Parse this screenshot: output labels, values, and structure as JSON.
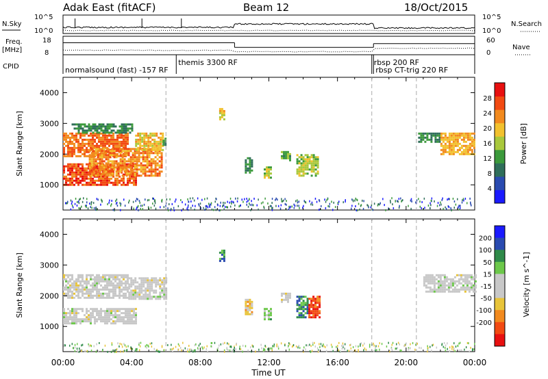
{
  "header": {
    "station": "Adak East (fitACF)",
    "beam": "Beam 12",
    "date": "18/Oct/2015"
  },
  "top_panels": {
    "nsky_label": "N.Sky",
    "nsky_ticks": [
      "10^5",
      "10^0"
    ],
    "nsearch_label": "N.Search",
    "nsearch_ticks": [
      "10^5",
      "10^0"
    ],
    "freq_label": "Freq.",
    "freq_unit": "[MHz]",
    "freq_ticks": [
      "18",
      "8"
    ],
    "nave_label": "Nave",
    "nave_ticks": [
      "60",
      "0"
    ],
    "cpid_label": "CPID",
    "cpid_segments": [
      {
        "label": "normalsound (fast) -157 RF",
        "start_h": 0,
        "end_h": 6.6
      },
      {
        "label": "themis 3300 RF",
        "start_h": 6.6,
        "end_h": 18.0
      },
      {
        "label": "rbsp 200 RF",
        "start_h": 18.0,
        "end_h": 18.1
      },
      {
        "label": "rbsp CT-trig 220 RF",
        "start_h": 18.1,
        "end_h": 24
      }
    ],
    "freq_steps": [
      {
        "start_h": 0,
        "end_h": 10.0,
        "mhz": 14.5
      },
      {
        "start_h": 10.0,
        "end_h": 18.1,
        "mhz": 12.0
      },
      {
        "start_h": 18.1,
        "end_h": 24,
        "mhz": 14.0
      }
    ]
  },
  "x_axis": {
    "label": "Time UT",
    "ticks": [
      "00:00",
      "04:00",
      "08:00",
      "12:00",
      "16:00",
      "20:00",
      "00:00"
    ],
    "range_h": [
      0,
      24
    ]
  },
  "colors": {
    "power": [
      "#1a1aff",
      "#2a4bb0",
      "#2f6e5a",
      "#3c9a3c",
      "#a9c83c",
      "#f2c12e",
      "#f28a1e",
      "#f24a12",
      "#e81010"
    ],
    "velocity": [
      "#e81010",
      "#f24a12",
      "#f28a1e",
      "#e8c43a",
      "#c8c8c8",
      "#c8c8c8",
      "#6cc84a",
      "#2f8a4a",
      "#2a4bb0",
      "#1a1aff"
    ]
  },
  "chart_data": [
    {
      "type": "heatmap",
      "title": "Power [dB]",
      "ylabel": "Slant Range [km]",
      "xlabel": "",
      "yticks": [
        "1000",
        "2000",
        "3000",
        "4000"
      ],
      "ylim_km": [
        180,
        4500
      ],
      "colorbar_label": "Power [dB]",
      "colorbar_ticks": [
        "4",
        "8",
        "12",
        "16",
        "20",
        "24",
        "28"
      ],
      "patches": [
        {
          "t0": 0.0,
          "t1": 4.3,
          "r0": 1000,
          "r1": 1700,
          "level": 28
        },
        {
          "t0": 0.0,
          "t1": 3.8,
          "r0": 1900,
          "r1": 2700,
          "level": 26
        },
        {
          "t0": 1.5,
          "t1": 5.8,
          "r0": 1300,
          "r1": 2200,
          "level": 24
        },
        {
          "t0": 4.2,
          "t1": 5.8,
          "r0": 2100,
          "r1": 2700,
          "level": 20
        },
        {
          "t0": 0.5,
          "t1": 4.0,
          "r0": 2700,
          "r1": 3000,
          "level": 10
        },
        {
          "t0": 5.8,
          "t1": 6.0,
          "r0": 2300,
          "r1": 2600,
          "level": 8
        },
        {
          "t0": 9.1,
          "t1": 9.4,
          "r0": 3100,
          "r1": 3500,
          "level": 20
        },
        {
          "t0": 10.6,
          "t1": 11.0,
          "r0": 1400,
          "r1": 1900,
          "level": 10
        },
        {
          "t0": 11.7,
          "t1": 12.1,
          "r0": 1200,
          "r1": 1600,
          "level": 16
        },
        {
          "t0": 12.7,
          "t1": 13.2,
          "r0": 1800,
          "r1": 2100,
          "level": 12
        },
        {
          "t0": 13.6,
          "t1": 14.9,
          "r0": 1300,
          "r1": 2000,
          "level": 16
        },
        {
          "t0": 20.7,
          "t1": 22.0,
          "r0": 2400,
          "r1": 2700,
          "level": 10
        },
        {
          "t0": 22.0,
          "t1": 24.0,
          "r0": 2000,
          "r1": 2700,
          "level": 22
        }
      ]
    },
    {
      "type": "heatmap",
      "title": "Velocity [m s^-1]",
      "ylabel": "Slant Range [km]",
      "xlabel": "Time UT",
      "yticks": [
        "1000",
        "2000",
        "3000",
        "4000"
      ],
      "ylim_km": [
        180,
        4500
      ],
      "colorbar_label": "Velocity [m s^-1]",
      "colorbar_ticks": [
        "200",
        "100",
        "50",
        "15",
        "-15",
        "-50",
        "-100",
        "-200"
      ],
      "patches": [
        {
          "t0": 0.0,
          "t1": 4.3,
          "r0": 1100,
          "r1": 1600,
          "v": 0
        },
        {
          "t0": 0.0,
          "t1": 3.8,
          "r0": 1900,
          "r1": 2700,
          "v": 0
        },
        {
          "t0": 3.8,
          "t1": 6.0,
          "r0": 1900,
          "r1": 2600,
          "v": 0
        },
        {
          "t0": 9.1,
          "t1": 9.4,
          "r0": 3100,
          "r1": 3500,
          "v": 150
        },
        {
          "t0": 10.6,
          "t1": 11.0,
          "r0": 1400,
          "r1": 1900,
          "v": -80
        },
        {
          "t0": 11.7,
          "t1": 12.1,
          "r0": 1200,
          "r1": 1600,
          "v": 60
        },
        {
          "t0": 12.7,
          "t1": 13.2,
          "r0": 1800,
          "r1": 2100,
          "v": -30
        },
        {
          "t0": 13.6,
          "t1": 14.3,
          "r0": 1300,
          "r1": 2000,
          "v": 150
        },
        {
          "t0": 14.3,
          "t1": 14.9,
          "r0": 1300,
          "r1": 2000,
          "v": -200
        },
        {
          "t0": 21.0,
          "t1": 24.0,
          "r0": 2100,
          "r1": 2700,
          "v": 0
        }
      ]
    }
  ]
}
